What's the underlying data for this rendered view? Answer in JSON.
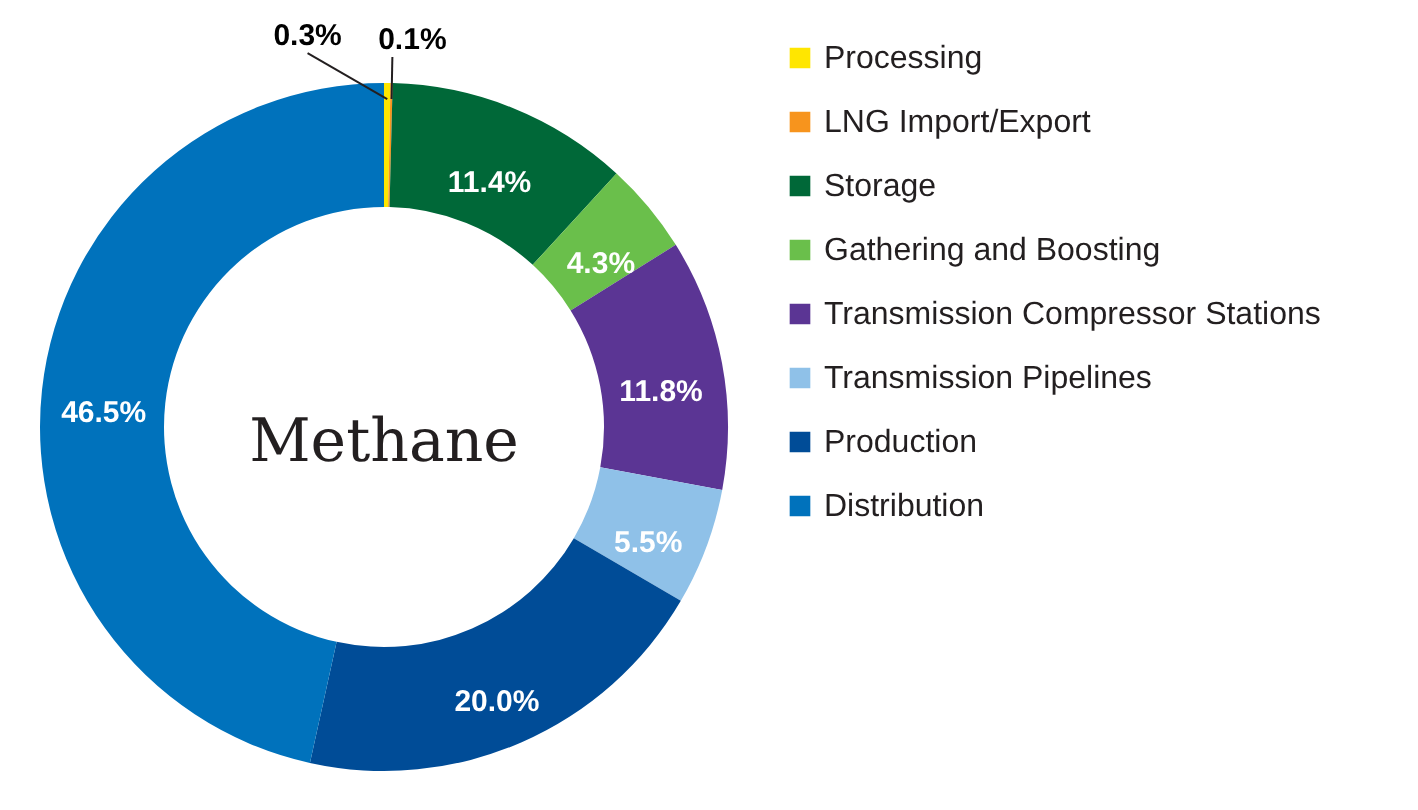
{
  "chart_data": {
    "type": "donut",
    "title": "Methane",
    "categories": [
      "Processing",
      "LNG Import/Export",
      "Storage",
      "Gathering and Boosting",
      "Transmission Compressor Stations",
      "Transmission Pipelines",
      "Production",
      "Distribution"
    ],
    "values": [
      0.3,
      0.1,
      11.4,
      4.3,
      11.8,
      5.5,
      20.0,
      46.5
    ],
    "colors": [
      "#ffe600",
      "#f7941d",
      "#006838",
      "#6abf4b",
      "#5b3594",
      "#8fc1e8",
      "#004c97",
      "#0072bc"
    ],
    "value_labels": [
      "0.3%",
      "0.1%",
      "11.4%",
      "4.3%",
      "11.8%",
      "5.5%",
      "20.0%",
      "46.5%"
    ],
    "legend": "right"
  }
}
